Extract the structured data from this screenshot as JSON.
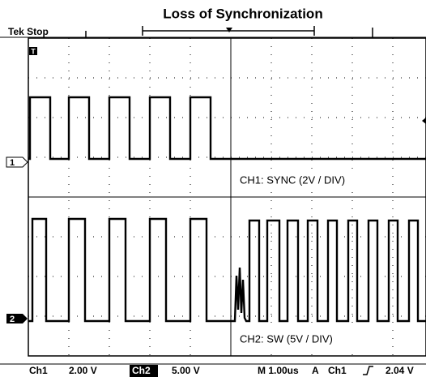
{
  "title": "Loss of Synchronization",
  "header": {
    "status": "Tek Stop"
  },
  "markers": {
    "trigger": "T",
    "ch1": "1",
    "ch2": "2"
  },
  "channels": [
    {
      "label": "CH1:  SYNC (2V / DIV)"
    },
    {
      "label": "CH2:  SW (5V / DIV)"
    }
  ],
  "status_bar": [
    "Ch1",
    "2.00 V",
    "Ch2",
    "5.00 V",
    "M 1.00us",
    "A",
    "Ch1",
    "2.04 V"
  ]
}
